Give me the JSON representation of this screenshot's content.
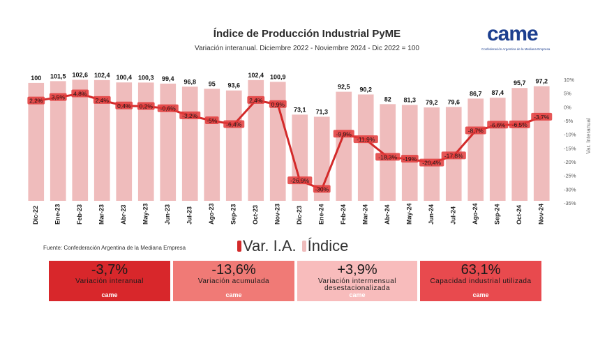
{
  "header": {
    "title": "Índice de Producción Industrial PyME",
    "subtitle": "Variación interanual. Diciembre 2022 - Noviembre 2024 - Dic 2022 = 100"
  },
  "logo": {
    "word": "came",
    "tagline": "Confederación Argentina de la Mediana Empresa"
  },
  "chart_data": {
    "type": "bar",
    "categories": [
      "Dic-22",
      "Ene-23",
      "Feb-23",
      "Mar-23",
      "Abr-23",
      "May-23",
      "Jun-23",
      "Jul-23",
      "Ago-23",
      "Sep-23",
      "Oct-23",
      "Nov-23",
      "Dic-23",
      "Ene-24",
      "Feb-24",
      "Mar-24",
      "Abr-24",
      "May-24",
      "Jun-24",
      "Jul-24",
      "Ago-24",
      "Sep-24",
      "Oct-24",
      "Nov-24"
    ],
    "series": [
      {
        "name": "Índice",
        "type": "bar",
        "values": [
          100,
          101.5,
          102.6,
          102.4,
          100.4,
          100.3,
          99.4,
          96.8,
          95,
          93.6,
          102.4,
          100.9,
          73.1,
          71.3,
          92.5,
          90.2,
          82,
          81.3,
          79.2,
          79.6,
          86.7,
          87.4,
          95.7,
          97.2
        ],
        "labels": [
          "100",
          "101,5",
          "102,6",
          "102,4",
          "100,4",
          "100,3",
          "99,4",
          "96,8",
          "95",
          "93,6",
          "102,4",
          "100,9",
          "73,1",
          "71,3",
          "92,5",
          "90,2",
          "82",
          "81,3",
          "79,2",
          "79,6",
          "86,7",
          "87,4",
          "95,7",
          "97,2"
        ]
      },
      {
        "name": "Var. I.A.",
        "type": "line",
        "values": [
          2.2,
          3.5,
          4.8,
          2.4,
          0.4,
          0.2,
          -0.6,
          -3.2,
          -5,
          -6.4,
          2.4,
          0.9,
          -26.9,
          -30,
          -9.9,
          -11.9,
          -18.3,
          -19,
          -20.4,
          -17.8,
          -8.7,
          -6.6,
          -6.5,
          -3.7
        ],
        "labels": [
          "2,2%",
          "3,5%",
          "4,8%",
          "2,4%",
          "0,4%",
          "0,2%",
          "-0,6%",
          "-3,2%",
          "-5%",
          "-6,4%",
          "2,4%",
          "0,9%",
          "-26,9%",
          "-30%",
          "-9,9%",
          "-11,9%",
          "-18,3%",
          "-19%",
          "-20,4%",
          "-17,8%",
          "-8,7%",
          "-6,6%",
          "-6,5%",
          "-3,7%"
        ]
      }
    ],
    "y2_axis": {
      "label": "Var. Interanual",
      "ticks": [
        10,
        5,
        0,
        -5,
        -10,
        -15,
        -20,
        -25,
        -30,
        -35
      ],
      "tick_labels": [
        "10%",
        "5%",
        "0%",
        "-5%",
        "-10%",
        "-15%",
        "-20%",
        "-25%",
        "-30%",
        "-35%"
      ],
      "range": [
        -35,
        10
      ]
    },
    "bar_axis_range": [
      0,
      110
    ],
    "grid": false,
    "colors": {
      "bar": "#efbcbc",
      "line": "#d32a2a",
      "bar_label": "#111111",
      "line_label_bg": "#e23a3a"
    }
  },
  "source": "Fuente: Confederación Argentina de la Mediana Empresa",
  "legend": {
    "line": "Var. I.A.",
    "bar": "Índice"
  },
  "kpis": [
    {
      "value": "-3,7%",
      "label": "Variación interanual",
      "color": "#d8272b",
      "logo": "came"
    },
    {
      "value": "-13,6%",
      "label": "Variación acumulada",
      "color": "#f07a76",
      "logo": "came"
    },
    {
      "value": "+3,9%",
      "label": "Variación intermensual desestacionalizada",
      "color": "#f8bcbc",
      "logo": "came"
    },
    {
      "value": "63,1%",
      "label": "Capacidad industrial utilizada",
      "color": "#e84a4e",
      "logo": "came"
    }
  ]
}
